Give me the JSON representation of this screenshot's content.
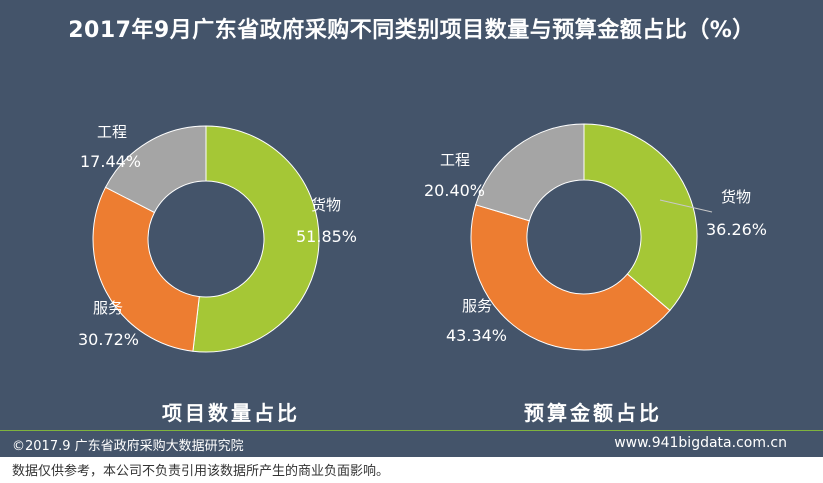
{
  "title": "2017年9月广东省政府采购不同类别项目数量与预算金额占比（%）",
  "chart_data": [
    {
      "type": "pie",
      "donut": true,
      "caption": "项目数量占比",
      "slices": [
        {
          "label": "货物",
          "value": 51.85,
          "value_text": "51.85%",
          "color": "#a5c736"
        },
        {
          "label": "服务",
          "value": 30.72,
          "value_text": "30.72%",
          "color": "#ed7d31"
        },
        {
          "label": "工程",
          "value": 17.44,
          "value_text": "17.44%",
          "color": "#a5a5a5"
        }
      ]
    },
    {
      "type": "pie",
      "donut": true,
      "caption": "预算金额占比",
      "slices": [
        {
          "label": "货物",
          "value": 36.26,
          "value_text": "36.26%",
          "color": "#a5c736"
        },
        {
          "label": "服务",
          "value": 43.34,
          "value_text": "43.34%",
          "color": "#ed7d31"
        },
        {
          "label": "工程",
          "value": 20.4,
          "value_text": "20.40%",
          "color": "#a5a5a5"
        }
      ]
    }
  ],
  "footer": {
    "copyright": "©2017.9  广东省政府采购大数据研究院",
    "website": "www.941bigdata.com.cn",
    "disclaimer": "数据仅供参考，本公司不负责引用该数据所产生的商业负面影响。"
  },
  "colors": {
    "background": "#44546a",
    "accent_line": "#7fb33e"
  }
}
